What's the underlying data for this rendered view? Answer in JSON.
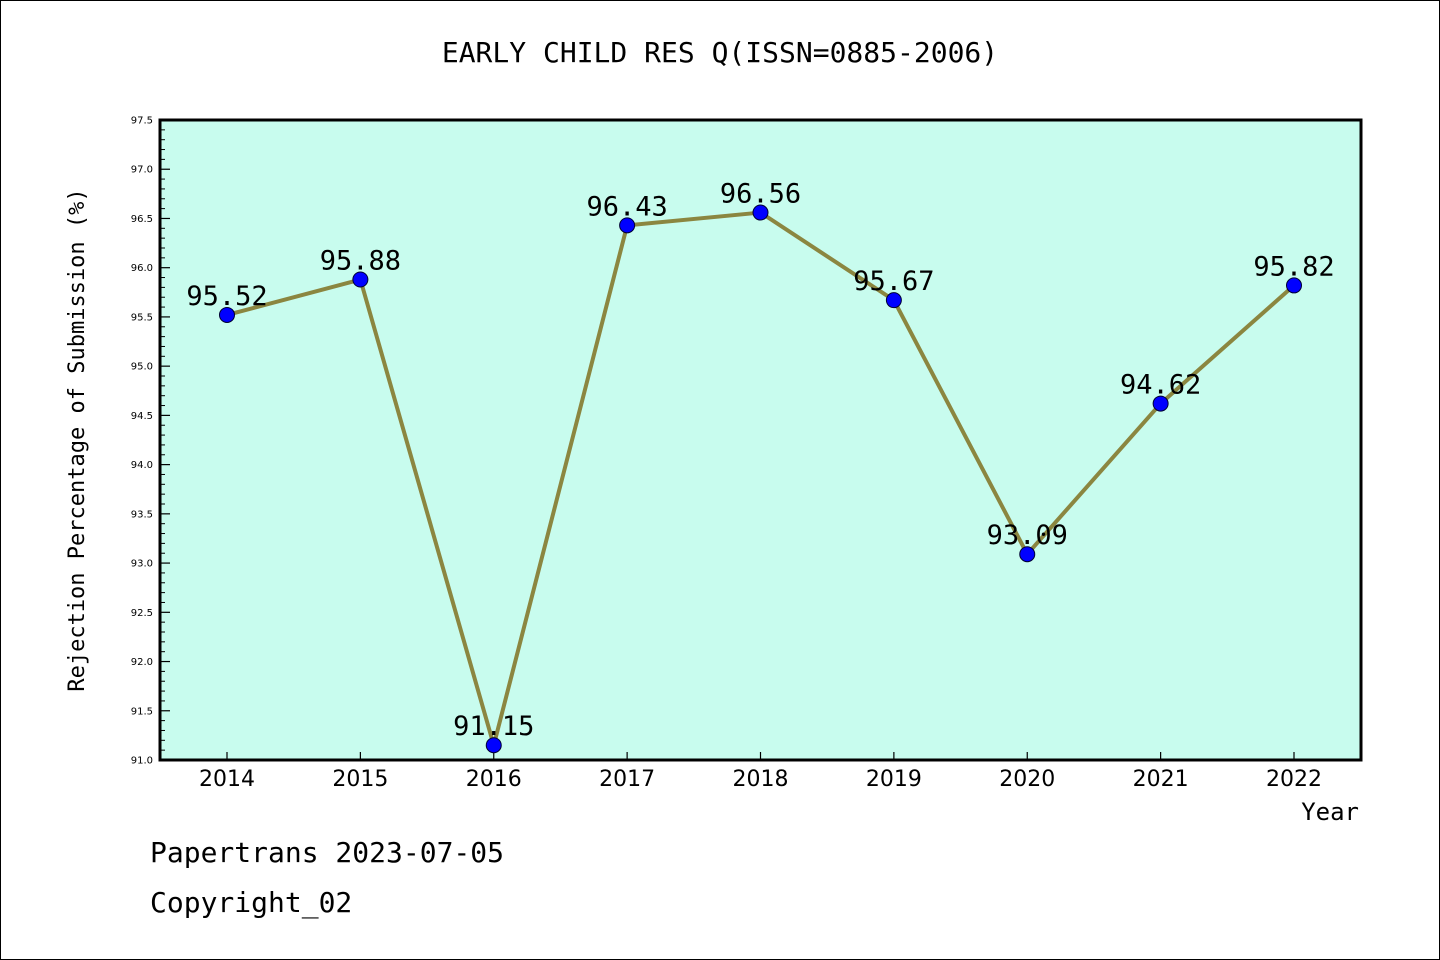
{
  "chart_data": {
    "type": "line",
    "title": "EARLY CHILD RES Q(ISSN=0885-2006)",
    "xlabel": "Year",
    "ylabel": "Rejection Percentage of Submission (%)",
    "categories": [
      "2014",
      "2015",
      "2016",
      "2017",
      "2018",
      "2019",
      "2020",
      "2021",
      "2022"
    ],
    "series": [
      {
        "values": [
          95.52,
          95.88,
          91.15,
          96.43,
          96.56,
          95.67,
          93.09,
          94.62,
          95.82
        ]
      }
    ],
    "data_labels": [
      "95.52",
      "95.88",
      "91.15",
      "96.43",
      "96.56",
      "95.67",
      "93.09",
      "94.62",
      "95.82"
    ],
    "ylim": [
      91.0,
      97.5
    ],
    "yticks": [
      "91.0",
      "91.5",
      "92.0",
      "92.5",
      "93.0",
      "93.5",
      "94.0",
      "94.5",
      "95.0",
      "95.5",
      "96.0",
      "96.5",
      "97.0",
      "97.5"
    ],
    "grid": false,
    "legend": "none",
    "colors": {
      "plot_background": "#c8fcee",
      "line": "#8b8640",
      "marker": "#0000ff"
    }
  },
  "footer": {
    "line1": "Papertrans 2023-07-05",
    "line2": "Copyright_02"
  }
}
